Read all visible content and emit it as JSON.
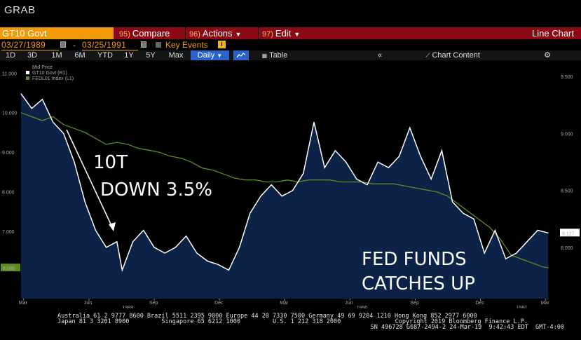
{
  "window_title": "GRAB",
  "menubar": {
    "ticker": "GT10 Govt",
    "compare": {
      "num": "95)",
      "label": "Compare"
    },
    "actions": {
      "num": "96)",
      "label": "Actions"
    },
    "edit": {
      "num": "97)",
      "label": "Edit"
    },
    "chart_type": "Line Chart"
  },
  "dates": {
    "start": "03/27/1989",
    "end": "03/25/1991",
    "key_events_label": "Key Events"
  },
  "tabs": {
    "periods": [
      "1D",
      "3D",
      "1M",
      "6M",
      "YTD",
      "1Y",
      "5Y",
      "Max"
    ],
    "frequency": "Daily",
    "table_label": "Table",
    "chart_content_label": "Chart Content"
  },
  "legend": {
    "title": "Mid Price",
    "series1": "GT10 Govt  (R1)",
    "series2": "FEDL01 Index  (L1)"
  },
  "annotations": {
    "a1_line1": "10T",
    "a1_line2": "DOWN 3.5%",
    "a2_line1": "FED FUNDS",
    "a2_line2": "CATCHES UP"
  },
  "footer": {
    "line1_left": "Australia 61 2 9777 8600 Brazil 5511 2395 9000 Europe 44 20 7330 7500 Germany 49 69 9204 1210 Hong Kong 852 2977 6000",
    "line2_left": "Japan 81 3 3201 8900         Singapore 65 6212 1000         U.S. 1 212 318 2000",
    "line2_right": "Copyright 2019 Bloomberg Finance L.P.",
    "line3_right": "SN 496728 G687-2494-2 24-Mar-19  9:42:43 EDT  GMT-4:00"
  },
  "colors": {
    "menubar": "#8b0a14",
    "ticker_bg": "#f29a0a",
    "accent_blue": "#2b63c8",
    "area_fill": "#0c2247",
    "gt10_line": "#ffffff",
    "fedl01_line": "#5a8f1e"
  },
  "chart_data": {
    "type": "line",
    "left_axis": {
      "series": "FEDL01 Index",
      "ticks": [
        "11.000",
        "10.000",
        "9.000",
        "8.000",
        "7.000",
        "6.080"
      ],
      "ylim": [
        5.3,
        11.2
      ],
      "last_value": "6.080"
    },
    "right_axis": {
      "series": "GT10 Govt",
      "ticks": [
        "9.500",
        "9.000",
        "8.500",
        "8.127",
        "8.000"
      ],
      "ylim": [
        7.55,
        9.6
      ],
      "last_value": "8.127"
    },
    "x_ticks": [
      "Mar",
      "Jun",
      "Sep",
      "Dec",
      "Mar",
      "Jun",
      "Sep",
      "Dec",
      "Mar"
    ],
    "x_year_labels": [
      "1989",
      "1990",
      "1991"
    ],
    "series": [
      {
        "name": "GT10 Govt (R1)",
        "color": "#ffffff",
        "fill": "#0c2247",
        "points": [
          [
            0,
            9.35
          ],
          [
            0.02,
            9.22
          ],
          [
            0.04,
            9.3
          ],
          [
            0.06,
            9.1
          ],
          [
            0.08,
            9.0
          ],
          [
            0.1,
            8.75
          ],
          [
            0.12,
            8.4
          ],
          [
            0.14,
            8.15
          ],
          [
            0.16,
            8.0
          ],
          [
            0.18,
            8.05
          ],
          [
            0.19,
            7.8
          ],
          [
            0.21,
            8.05
          ],
          [
            0.23,
            8.15
          ],
          [
            0.25,
            8.0
          ],
          [
            0.27,
            7.95
          ],
          [
            0.29,
            8.0
          ],
          [
            0.31,
            8.1
          ],
          [
            0.33,
            7.95
          ],
          [
            0.35,
            7.88
          ],
          [
            0.37,
            7.85
          ],
          [
            0.39,
            7.8
          ],
          [
            0.41,
            8.0
          ],
          [
            0.43,
            8.3
          ],
          [
            0.45,
            8.45
          ],
          [
            0.47,
            8.55
          ],
          [
            0.49,
            8.45
          ],
          [
            0.51,
            8.5
          ],
          [
            0.53,
            8.65
          ],
          [
            0.55,
            9.1
          ],
          [
            0.57,
            8.7
          ],
          [
            0.59,
            8.85
          ],
          [
            0.61,
            8.75
          ],
          [
            0.63,
            8.6
          ],
          [
            0.65,
            8.55
          ],
          [
            0.67,
            8.75
          ],
          [
            0.69,
            8.7
          ],
          [
            0.71,
            8.8
          ],
          [
            0.73,
            9.05
          ],
          [
            0.75,
            8.8
          ],
          [
            0.77,
            8.6
          ],
          [
            0.79,
            8.85
          ],
          [
            0.81,
            8.4
          ],
          [
            0.83,
            8.3
          ],
          [
            0.85,
            8.25
          ],
          [
            0.87,
            7.95
          ],
          [
            0.89,
            8.15
          ],
          [
            0.91,
            7.9
          ],
          [
            0.93,
            7.95
          ],
          [
            0.95,
            8.05
          ],
          [
            0.97,
            8.15
          ],
          [
            0.99,
            8.127
          ]
        ]
      },
      {
        "name": "FEDL01 Index (L1)",
        "color": "#5a8f1e",
        "points": [
          [
            0,
            10.0
          ],
          [
            0.02,
            9.9
          ],
          [
            0.04,
            9.8
          ],
          [
            0.06,
            9.9
          ],
          [
            0.08,
            9.7
          ],
          [
            0.1,
            9.6
          ],
          [
            0.12,
            9.5
          ],
          [
            0.14,
            9.35
          ],
          [
            0.16,
            9.2
          ],
          [
            0.18,
            9.25
          ],
          [
            0.2,
            9.2
          ],
          [
            0.22,
            9.1
          ],
          [
            0.24,
            9.05
          ],
          [
            0.26,
            9.0
          ],
          [
            0.28,
            8.9
          ],
          [
            0.3,
            8.85
          ],
          [
            0.32,
            8.75
          ],
          [
            0.34,
            8.6
          ],
          [
            0.36,
            8.55
          ],
          [
            0.38,
            8.45
          ],
          [
            0.4,
            8.35
          ],
          [
            0.42,
            8.3
          ],
          [
            0.44,
            8.3
          ],
          [
            0.46,
            8.25
          ],
          [
            0.48,
            8.25
          ],
          [
            0.5,
            8.3
          ],
          [
            0.52,
            8.25
          ],
          [
            0.54,
            8.3
          ],
          [
            0.56,
            8.3
          ],
          [
            0.58,
            8.3
          ],
          [
            0.6,
            8.25
          ],
          [
            0.62,
            8.25
          ],
          [
            0.64,
            8.25
          ],
          [
            0.66,
            8.2
          ],
          [
            0.68,
            8.2
          ],
          [
            0.7,
            8.2
          ],
          [
            0.72,
            8.15
          ],
          [
            0.74,
            8.1
          ],
          [
            0.76,
            8.05
          ],
          [
            0.78,
            8.0
          ],
          [
            0.8,
            7.9
          ],
          [
            0.82,
            7.7
          ],
          [
            0.84,
            7.5
          ],
          [
            0.86,
            7.3
          ],
          [
            0.88,
            7.1
          ],
          [
            0.9,
            6.8
          ],
          [
            0.92,
            6.4
          ],
          [
            0.94,
            6.3
          ],
          [
            0.96,
            6.2
          ],
          [
            0.98,
            6.1
          ],
          [
            0.99,
            6.08
          ]
        ]
      }
    ]
  }
}
